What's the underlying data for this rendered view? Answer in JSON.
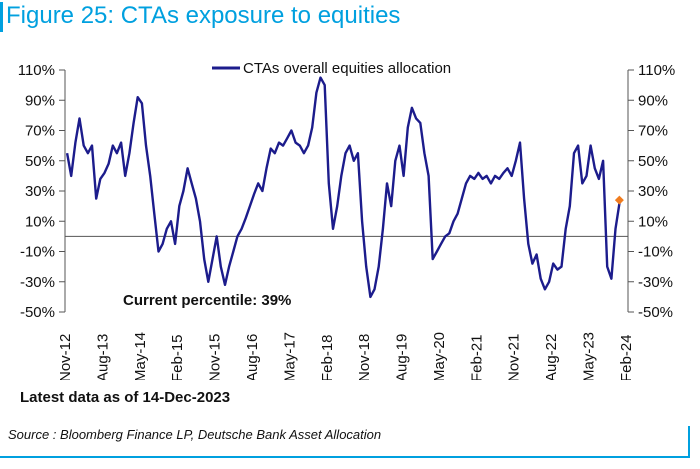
{
  "figure_title": "Figure 25: CTAs exposure to equities",
  "note": "Latest data as of 14-Dec-2023",
  "source": "Source : Bloomberg Finance LP, Deutsche Bank Asset Allocation",
  "colors": {
    "title": "#00a0df",
    "series": "#1c1c8c",
    "marker": "#f07c1e",
    "rule": "#00a0df"
  },
  "chart_data": {
    "type": "line",
    "title": "",
    "xlabel": "",
    "ylabel": "",
    "ylim": [
      -50,
      110
    ],
    "y_ticks": [
      "110%",
      "90%",
      "70%",
      "50%",
      "30%",
      "10%",
      "-10%",
      "-30%",
      "-50%"
    ],
    "x_ticks": [
      "Nov-12",
      "Aug-13",
      "May-14",
      "Feb-15",
      "Nov-15",
      "Aug-16",
      "May-17",
      "Feb-18",
      "Nov-18",
      "Aug-19",
      "May-20",
      "Feb-21",
      "Nov-21",
      "Aug-22",
      "May-23",
      "Feb-24"
    ],
    "legend_position": "top-center",
    "annotation": "Current percentile: 39%",
    "series": [
      {
        "name": "CTAs overall equities allocation",
        "points": [
          [
            "2012-11",
            55
          ],
          [
            "2012-12",
            40
          ],
          [
            "2013-01",
            62
          ],
          [
            "2013-02",
            78
          ],
          [
            "2013-03",
            60
          ],
          [
            "2013-04",
            55
          ],
          [
            "2013-05",
            60
          ],
          [
            "2013-06",
            25
          ],
          [
            "2013-07",
            38
          ],
          [
            "2013-08",
            42
          ],
          [
            "2013-09",
            48
          ],
          [
            "2013-10",
            60
          ],
          [
            "2013-11",
            55
          ],
          [
            "2013-12",
            62
          ],
          [
            "2014-01",
            40
          ],
          [
            "2014-02",
            55
          ],
          [
            "2014-03",
            75
          ],
          [
            "2014-04",
            92
          ],
          [
            "2014-05",
            88
          ],
          [
            "2014-06",
            60
          ],
          [
            "2014-07",
            40
          ],
          [
            "2014-08",
            15
          ],
          [
            "2014-09",
            -10
          ],
          [
            "2014-10",
            -5
          ],
          [
            "2014-11",
            5
          ],
          [
            "2014-12",
            10
          ],
          [
            "2015-01",
            -5
          ],
          [
            "2015-02",
            20
          ],
          [
            "2015-03",
            30
          ],
          [
            "2015-04",
            45
          ],
          [
            "2015-05",
            35
          ],
          [
            "2015-06",
            25
          ],
          [
            "2015-07",
            10
          ],
          [
            "2015-08",
            -15
          ],
          [
            "2015-09",
            -30
          ],
          [
            "2015-10",
            -15
          ],
          [
            "2015-11",
            0
          ],
          [
            "2015-12",
            -20
          ],
          [
            "2016-01",
            -32
          ],
          [
            "2016-02",
            -20
          ],
          [
            "2016-03",
            -10
          ],
          [
            "2016-04",
            0
          ],
          [
            "2016-05",
            5
          ],
          [
            "2016-06",
            12
          ],
          [
            "2016-07",
            20
          ],
          [
            "2016-08",
            28
          ],
          [
            "2016-09",
            35
          ],
          [
            "2016-10",
            30
          ],
          [
            "2016-11",
            45
          ],
          [
            "2016-12",
            58
          ],
          [
            "2017-01",
            55
          ],
          [
            "2017-02",
            62
          ],
          [
            "2017-03",
            60
          ],
          [
            "2017-04",
            65
          ],
          [
            "2017-05",
            70
          ],
          [
            "2017-06",
            62
          ],
          [
            "2017-07",
            60
          ],
          [
            "2017-08",
            55
          ],
          [
            "2017-09",
            60
          ],
          [
            "2017-10",
            72
          ],
          [
            "2017-11",
            95
          ],
          [
            "2017-12",
            105
          ],
          [
            "2018-01",
            100
          ],
          [
            "2018-02",
            35
          ],
          [
            "2018-03",
            5
          ],
          [
            "2018-04",
            20
          ],
          [
            "2018-05",
            40
          ],
          [
            "2018-06",
            55
          ],
          [
            "2018-07",
            60
          ],
          [
            "2018-08",
            50
          ],
          [
            "2018-09",
            55
          ],
          [
            "2018-10",
            10
          ],
          [
            "2018-11",
            -20
          ],
          [
            "2018-12",
            -40
          ],
          [
            "2019-01",
            -35
          ],
          [
            "2019-02",
            -20
          ],
          [
            "2019-03",
            5
          ],
          [
            "2019-04",
            35
          ],
          [
            "2019-05",
            20
          ],
          [
            "2019-06",
            50
          ],
          [
            "2019-07",
            60
          ],
          [
            "2019-08",
            40
          ],
          [
            "2019-09",
            72
          ],
          [
            "2019-10",
            85
          ],
          [
            "2019-11",
            78
          ],
          [
            "2019-12",
            75
          ],
          [
            "2020-01",
            55
          ],
          [
            "2020-02",
            40
          ],
          [
            "2020-03",
            -15
          ],
          [
            "2020-04",
            -10
          ],
          [
            "2020-05",
            -5
          ],
          [
            "2020-06",
            0
          ],
          [
            "2020-07",
            2
          ],
          [
            "2020-08",
            10
          ],
          [
            "2020-09",
            15
          ],
          [
            "2020-10",
            25
          ],
          [
            "2020-11",
            35
          ],
          [
            "2020-12",
            40
          ],
          [
            "2021-01",
            38
          ],
          [
            "2021-02",
            42
          ],
          [
            "2021-03",
            38
          ],
          [
            "2021-04",
            40
          ],
          [
            "2021-05",
            35
          ],
          [
            "2021-06",
            40
          ],
          [
            "2021-07",
            38
          ],
          [
            "2021-08",
            42
          ],
          [
            "2021-09",
            45
          ],
          [
            "2021-10",
            40
          ],
          [
            "2021-11",
            50
          ],
          [
            "2021-12",
            62
          ],
          [
            "2022-01",
            25
          ],
          [
            "2022-02",
            -5
          ],
          [
            "2022-03",
            -18
          ],
          [
            "2022-04",
            -12
          ],
          [
            "2022-05",
            -28
          ],
          [
            "2022-06",
            -35
          ],
          [
            "2022-07",
            -30
          ],
          [
            "2022-08",
            -18
          ],
          [
            "2022-09",
            -22
          ],
          [
            "2022-10",
            -20
          ],
          [
            "2022-11",
            5
          ],
          [
            "2022-12",
            20
          ],
          [
            "2023-01",
            55
          ],
          [
            "2023-02",
            60
          ],
          [
            "2023-03",
            35
          ],
          [
            "2023-04",
            40
          ],
          [
            "2023-05",
            60
          ],
          [
            "2023-06",
            45
          ],
          [
            "2023-07",
            38
          ],
          [
            "2023-08",
            50
          ],
          [
            "2023-09",
            -20
          ],
          [
            "2023-10",
            -28
          ],
          [
            "2023-11",
            5
          ],
          [
            "2023-12",
            23
          ]
        ]
      }
    ],
    "latest_point": {
      "x": "2023-12-14",
      "y": 24
    }
  }
}
